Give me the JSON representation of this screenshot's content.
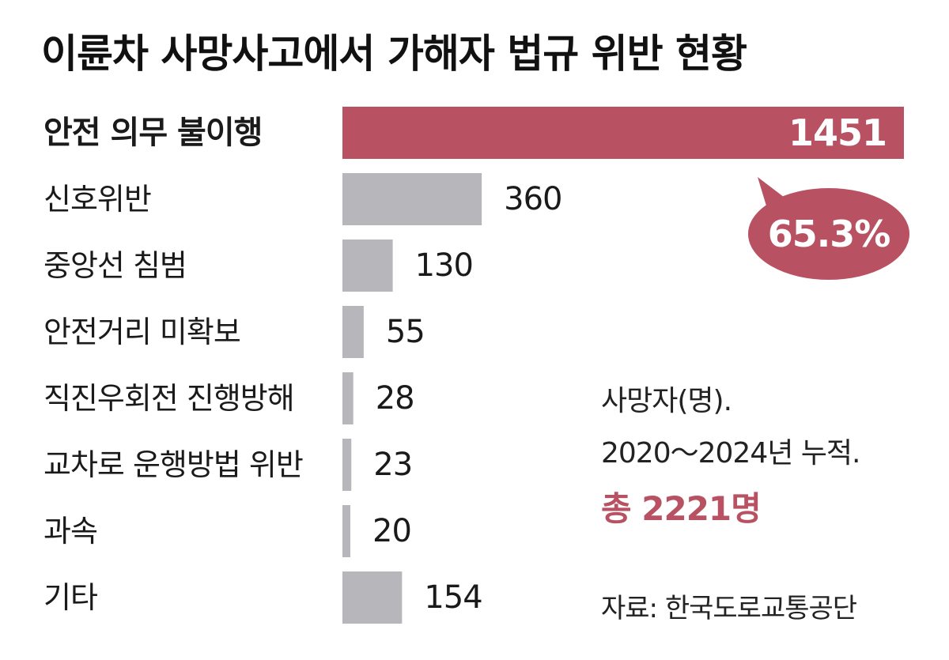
{
  "title": "이륜차 사망사고에서 가해자 법규 위반 현황",
  "chart_data": {
    "type": "bar",
    "orientation": "horizontal",
    "categories": [
      "안전 의무 불이행",
      "신호위반",
      "중앙선 침범",
      "안전거리 미확보",
      "직진우회전 진행방해",
      "교차로 운행방법 위반",
      "과속",
      "기타"
    ],
    "values": [
      1451,
      360,
      130,
      55,
      28,
      23,
      20,
      154
    ],
    "value_labels": [
      "1451",
      "360",
      "130",
      "55",
      "28",
      "23",
      "20",
      "154"
    ],
    "highlight_index": 0,
    "highlight_color": "#b85262",
    "bar_color": "#b7b7bb",
    "xlim": [
      0,
      1451
    ],
    "annotation": "65.3%",
    "grid": false
  },
  "notes": {
    "line1": "사망자(명).",
    "line2": "2020～2024년 누적.",
    "total": "총 2221명"
  },
  "source": "자료: 한국도로교통공단"
}
